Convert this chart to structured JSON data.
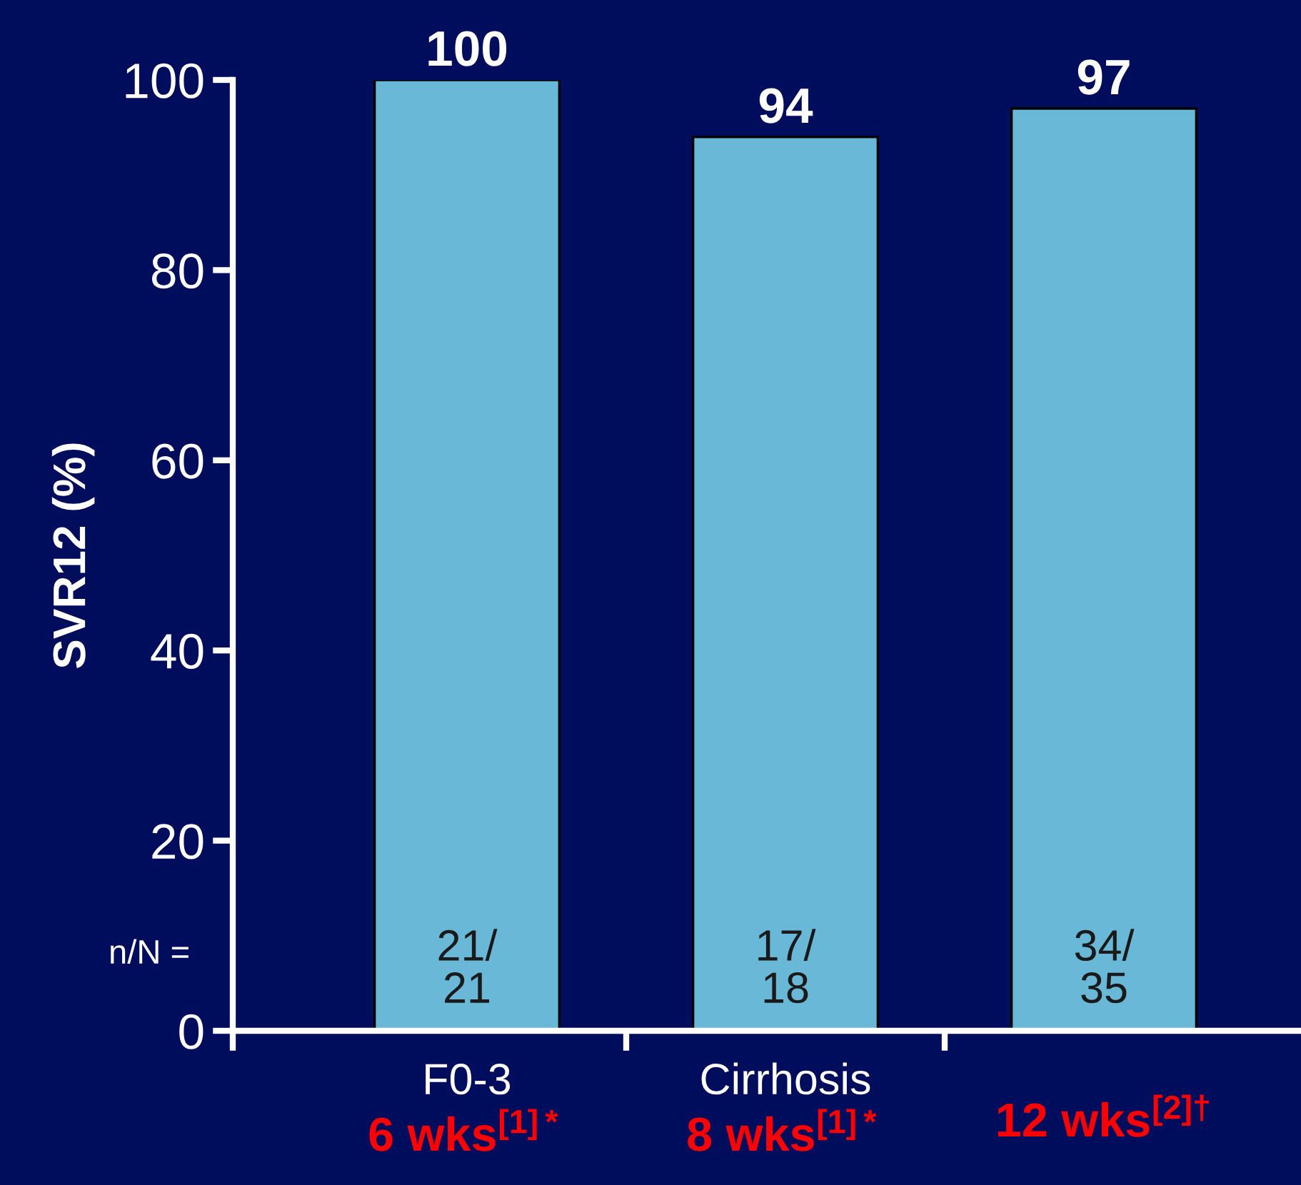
{
  "chart_data": {
    "type": "bar",
    "ylabel": "SVR12 (%)",
    "categories": [
      "F0-3",
      "Cirrhosis",
      null
    ],
    "values": [
      100,
      94,
      97
    ],
    "color": "#6ab8d8",
    "data_labels": true,
    "ylim": [
      0,
      100
    ],
    "yticks": [
      0,
      20,
      40,
      60,
      80,
      100
    ],
    "grid": false,
    "legend": false,
    "annotations": [
      "n/N =",
      "21/\n21",
      "17/\n18",
      "34/\n35",
      "6 wks$^{[1]*}$",
      "8 wks$^{[1]*}$",
      "12 wks$^{[2]†}$"
    ]
  }
}
